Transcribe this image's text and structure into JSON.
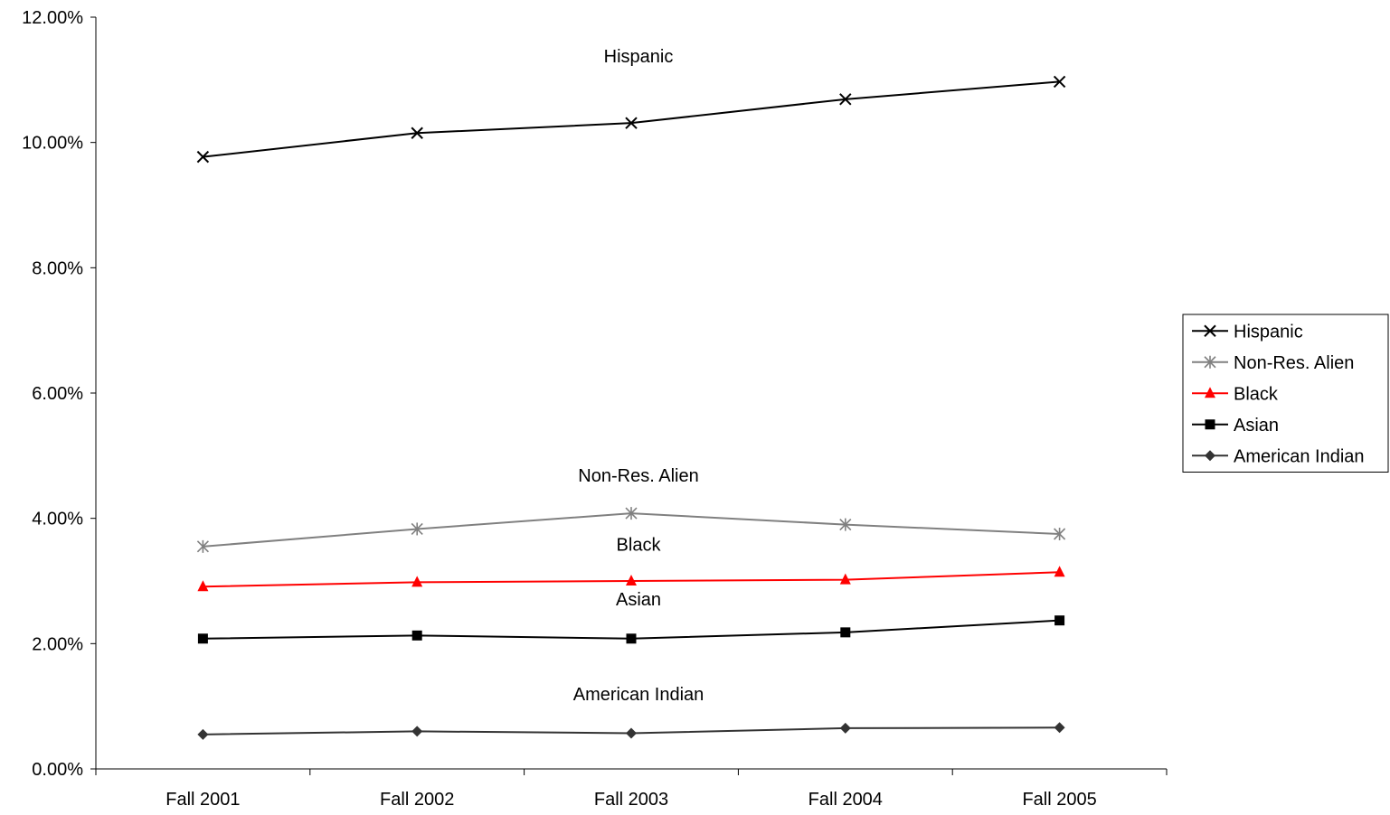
{
  "chart_data": {
    "type": "line",
    "title": "",
    "xlabel": "",
    "ylabel": "",
    "categories": [
      "Fall 2001",
      "Fall 2002",
      "Fall 2003",
      "Fall 2004",
      "Fall 2005"
    ],
    "ylim": [
      0,
      12
    ],
    "y_ticks": [
      0,
      2,
      4,
      6,
      8,
      10,
      12
    ],
    "y_tick_labels": [
      "0.00%",
      "2.00%",
      "4.00%",
      "6.00%",
      "8.00%",
      "10.00%",
      "12.00%"
    ],
    "grid": false,
    "legend_position": "right",
    "series": [
      {
        "name": "Hispanic",
        "values": [
          9.77,
          10.15,
          10.31,
          10.69,
          10.97
        ],
        "color": "#000000",
        "marker": "x"
      },
      {
        "name": "Non-Res. Alien",
        "values": [
          3.55,
          3.83,
          4.08,
          3.9,
          3.75
        ],
        "color": "#808080",
        "marker": "asterisk"
      },
      {
        "name": "Black",
        "values": [
          2.91,
          2.98,
          3.0,
          3.02,
          3.14
        ],
        "color": "#ff0000",
        "marker": "triangle"
      },
      {
        "name": "Asian",
        "values": [
          2.08,
          2.13,
          2.08,
          2.18,
          2.37
        ],
        "color": "#000000",
        "marker": "square"
      },
      {
        "name": "American Indian",
        "values": [
          0.55,
          0.6,
          0.57,
          0.65,
          0.66
        ],
        "color": "#333333",
        "marker": "diamond"
      }
    ],
    "annotations": [
      "Hispanic",
      "Non-Res. Alien",
      "Black",
      "Asian",
      "American Indian"
    ]
  }
}
